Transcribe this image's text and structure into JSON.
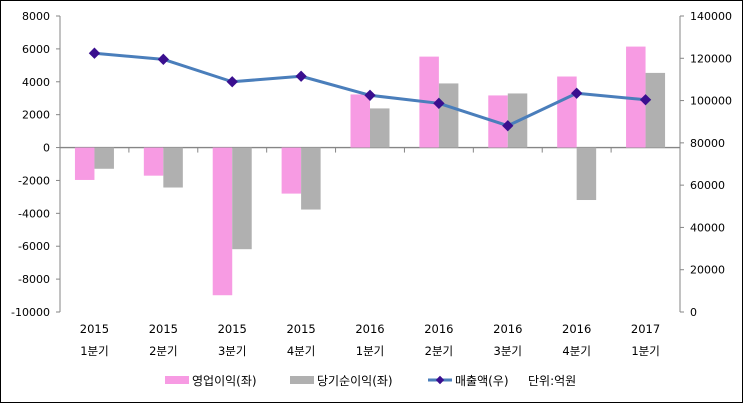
{
  "chart_data": {
    "type": "bar+line",
    "title": "",
    "categories": [
      [
        "2015",
        "1분기"
      ],
      [
        "2015",
        "2분기"
      ],
      [
        "2015",
        "3분기"
      ],
      [
        "2015",
        "4분기"
      ],
      [
        "2016",
        "1분기"
      ],
      [
        "2016",
        "2분기"
      ],
      [
        "2016",
        "3분기"
      ],
      [
        "2016",
        "4분기"
      ],
      [
        "2017",
        "1분기"
      ]
    ],
    "series": [
      {
        "name": "영업이익(좌)",
        "type": "bar",
        "axis": "left",
        "color": "#F79BE3",
        "values": [
          -1970,
          -1710,
          -8980,
          -2800,
          3230,
          5530,
          3170,
          4320,
          6140
        ]
      },
      {
        "name": "당기순이익(좌)",
        "type": "bar",
        "axis": "left",
        "color": "#B0B0B0",
        "values": [
          -1290,
          -2430,
          -6180,
          -3770,
          2380,
          3900,
          3290,
          -3190,
          4540
        ]
      },
      {
        "name": "매출액(우)",
        "type": "line",
        "axis": "right",
        "color": "#4A7EBB",
        "marker_color": "#3A0F8F",
        "values": [
          122400,
          119500,
          108900,
          111500,
          102500,
          98700,
          88100,
          103450,
          100400
        ]
      }
    ],
    "left_axis": {
      "ylim": [
        -10000,
        8000
      ],
      "step": 2000,
      "ticks": [
        "-10000",
        "-8000",
        "-6000",
        "-4000",
        "-2000",
        "0",
        "2000",
        "4000",
        "6000",
        "8000"
      ]
    },
    "right_axis": {
      "ylim": [
        0,
        140000
      ],
      "step": 20000,
      "ticks": [
        "0",
        "20000",
        "40000",
        "60000",
        "80000",
        "100000",
        "120000",
        "140000"
      ]
    },
    "legend": {
      "position": "bottom",
      "unit_note": "단위:억원"
    },
    "grid": false
  }
}
